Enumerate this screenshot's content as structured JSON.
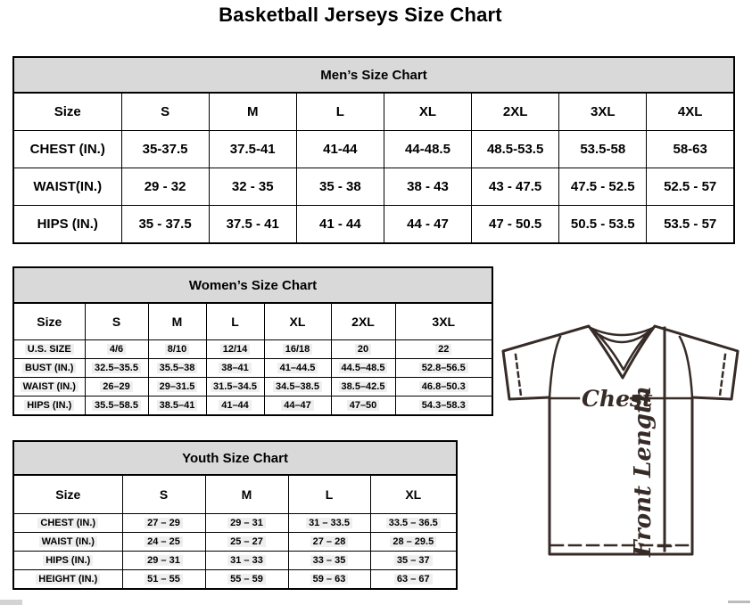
{
  "title": "Basketball Jerseys Size Chart",
  "tables": {
    "men": {
      "title": "Men’s Size Chart",
      "header": [
        "Size",
        "S",
        "M",
        "L",
        "XL",
        "2XL",
        "3XL",
        "4XL"
      ],
      "rows": [
        {
          "label": "CHEST (IN.)",
          "values": [
            "35-37.5",
            "37.5-41",
            "41-44",
            "44-48.5",
            "48.5-53.5",
            "53.5-58",
            "58-63"
          ]
        },
        {
          "label": "WAIST(IN.)",
          "values": [
            "29 - 32",
            "32 - 35",
            "35 - 38",
            "38 - 43",
            "43 - 47.5",
            "47.5 - 52.5",
            "52.5 - 57"
          ]
        },
        {
          "label": "HIPS (IN.)",
          "values": [
            "35 - 37.5",
            "37.5 - 41",
            "41 - 44",
            "44 - 47",
            "47 - 50.5",
            "50.5 - 53.5",
            "53.5 - 57"
          ]
        }
      ]
    },
    "women": {
      "title": "Women’s Size Chart",
      "header": [
        "Size",
        "S",
        "M",
        "L",
        "XL",
        "2XL",
        "3XL"
      ],
      "rows": [
        {
          "label": "U.S. SIZE",
          "values": [
            "4/6",
            "8/10",
            "12/14",
            "16/18",
            "20",
            "22"
          ]
        },
        {
          "label": "BUST (IN.)",
          "values": [
            "32.5–35.5",
            "35.5–38",
            "38–41",
            "41–44.5",
            "44.5–48.5",
            "52.8–56.5"
          ]
        },
        {
          "label": "WAIST (IN.)",
          "values": [
            "26–29",
            "29–31.5",
            "31.5–34.5",
            "34.5–38.5",
            "38.5–42.5",
            "46.8–50.3"
          ]
        },
        {
          "label": "HIPS (IN.)",
          "values": [
            "35.5–58.5",
            "38.5–41",
            "41–44",
            "44–47",
            "47–50",
            "54.3–58.3"
          ]
        }
      ]
    },
    "youth": {
      "title": "Youth Size Chart",
      "header": [
        "Size",
        "S",
        "M",
        "L",
        "XL"
      ],
      "rows": [
        {
          "label": "CHEST (IN.)",
          "values": [
            "27 – 29",
            "29 – 31",
            "31 – 33.5",
            "33.5 – 36.5"
          ]
        },
        {
          "label": "WAIST (IN.)",
          "values": [
            "24 – 25",
            "25 – 27",
            "27 – 28",
            "28 – 29.5"
          ]
        },
        {
          "label": "HIPS (IN.)",
          "values": [
            "29 – 31",
            "31 – 33",
            "33 – 35",
            "35 – 37"
          ]
        },
        {
          "label": "HEIGHT (IN.)",
          "values": [
            "51 – 55",
            "55 – 59",
            "59 – 63",
            "63 – 67"
          ]
        }
      ]
    }
  },
  "diagram": {
    "chest_label": "Chest",
    "front_length_label": "Front Length"
  },
  "colors": {
    "table_header_bg": "#d9d9d9",
    "table_border": "#000000",
    "cell_highlight": "#efefef",
    "diagram_stroke": "#362b27",
    "scrollbar_gray": "#d3d3d3"
  }
}
